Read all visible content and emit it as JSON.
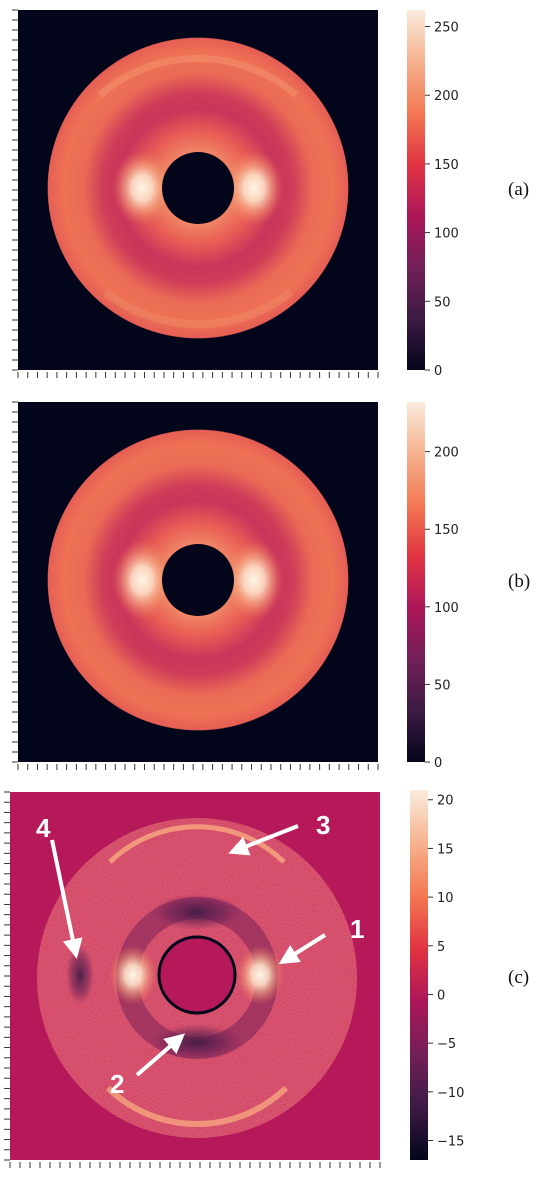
{
  "chart_data": [
    {
      "type": "heatmap",
      "panel_label": "(a)",
      "colorbar": {
        "ticks": [
          0,
          50,
          100,
          150,
          200,
          250
        ],
        "vmin": 0,
        "vmax": 262,
        "colormap": "rocket"
      },
      "rings": {
        "inner_radius_frac": 0.21,
        "outer_radius_frac": 0.98,
        "background_value": 0
      },
      "annotations": []
    },
    {
      "type": "heatmap",
      "panel_label": "(b)",
      "colorbar": {
        "ticks": [
          0,
          50,
          100,
          150,
          200
        ],
        "vmin": 0,
        "vmax": 232,
        "colormap": "rocket"
      },
      "rings": {
        "inner_radius_frac": 0.21,
        "outer_radius_frac": 0.98,
        "background_value": 0
      },
      "annotations": []
    },
    {
      "type": "heatmap",
      "panel_label": "(c)",
      "colorbar": {
        "ticks": [
          20,
          15,
          10,
          5,
          0,
          -5,
          -10,
          -15
        ],
        "vmin": -17,
        "vmax": 21,
        "colormap": "rocket"
      },
      "rings": {
        "inner_radius_frac": 0.21,
        "outer_radius_frac": 0.98,
        "background_value": 0
      },
      "annotations": [
        {
          "label": "1"
        },
        {
          "label": "2"
        },
        {
          "label": "3"
        },
        {
          "label": "4"
        }
      ]
    }
  ],
  "colors": {
    "rocket_stops": [
      "#03051a",
      "#3b1a44",
      "#701f57",
      "#ad1759",
      "#e13342",
      "#f37651",
      "#f6b48f",
      "#faebdd"
    ]
  }
}
